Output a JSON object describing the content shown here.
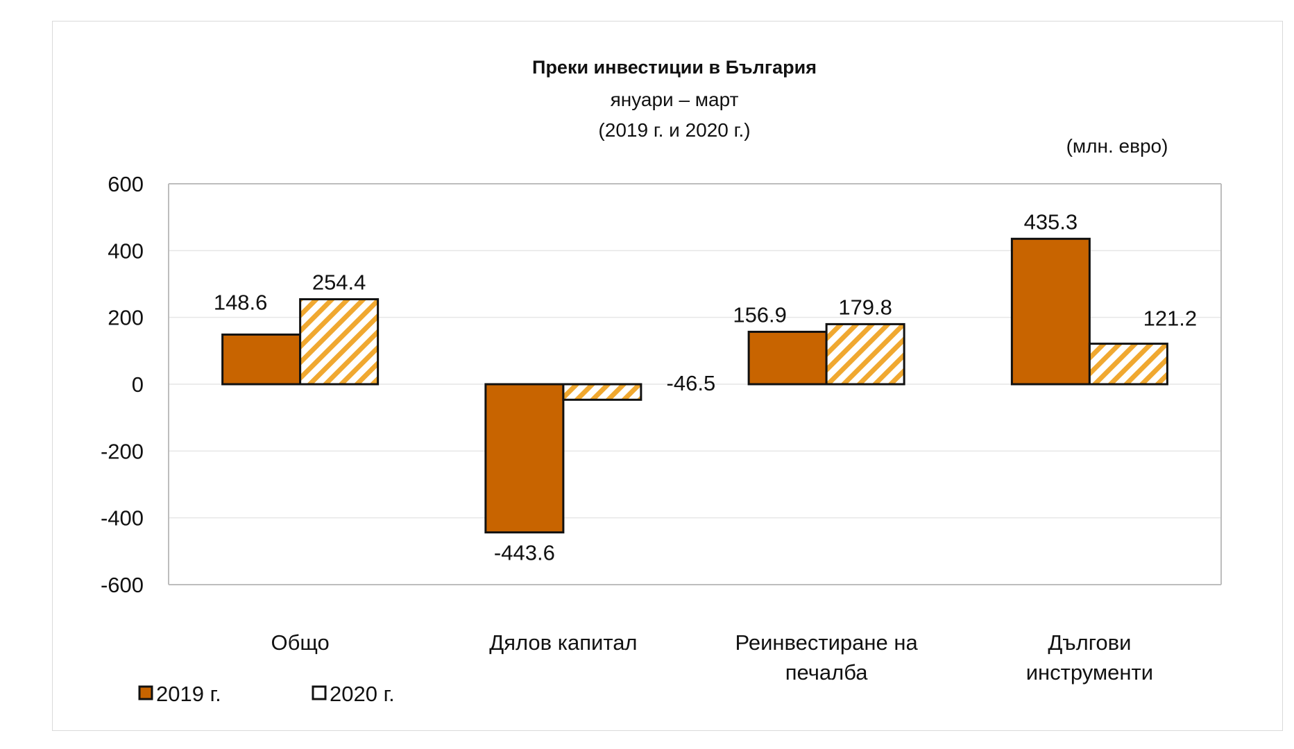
{
  "chart_data": {
    "type": "bar",
    "title": "Преки  инвестиции в България",
    "subtitle": "януари – март",
    "subtitle2": "(2019 г. и 2020 г.)",
    "unit_label": "(млн. евро)",
    "categories": [
      [
        "Общо"
      ],
      [
        "Дялов капитал"
      ],
      [
        "Реинвестиране на",
        "печалба"
      ],
      [
        "Дългови",
        "инструменти"
      ]
    ],
    "series": [
      {
        "name": "2019 г.",
        "values": [
          148.6,
          -443.6,
          156.9,
          435.3
        ],
        "color": "#C86400",
        "pattern": "solid"
      },
      {
        "name": "2020 г.",
        "values": [
          254.4,
          -46.5,
          179.8,
          121.2
        ],
        "color": "#F0A830",
        "pattern": "hatch"
      }
    ],
    "value_labels": [
      [
        "148.6",
        "-443.6",
        "156.9",
        "435.3"
      ],
      [
        "254.4",
        "-46.5",
        "179.8",
        "121.2"
      ]
    ],
    "ylim": [
      -600,
      600
    ],
    "yticks": [
      600,
      400,
      200,
      0,
      -200,
      -400,
      -600
    ],
    "grid": true,
    "legend": "bottom-left"
  }
}
